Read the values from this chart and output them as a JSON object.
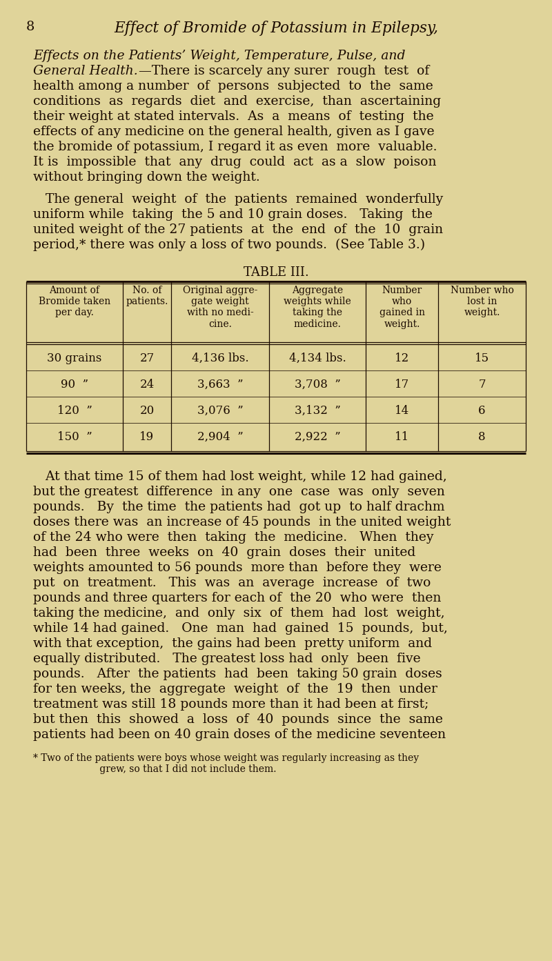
{
  "page_number": "8",
  "header_title": "Effect of Bromide of Potassium in Epilepsy,",
  "bg_color": "#e0d49a",
  "text_color": "#1a0a00",
  "para1_line1_italic": "Effects on the Patients’ Weight, Temperature, Pulse, and",
  "para1_line2_italic": "General Health.",
  "para1_line2_dash": "—There is scarcely any surer  rough  test  of",
  "para1_body": [
    "health among a number  of  persons  subjected  to  the  same",
    "conditions  as  regards  diet  and  exercise,  than  ascertaining",
    "their weight at stated intervals.  As  a  means  of  testing  the",
    "effects of any medicine on the general health, given as I gave",
    "the bromide of potassium, I regard it as even  more  valuable.",
    "It is  impossible  that  any  drug  could  act  as a  slow  poison",
    "without bringing down the weight."
  ],
  "para2": [
    "   The general  weight  of  the  patients  remained  wonderfully",
    "uniform while  taking  the 5 and 10 grain doses.   Taking  the",
    "united weight of the 27 patients  at  the  end  of  the  10  grain",
    "period,* there was only a loss of two pounds.  (See Table 3.)"
  ],
  "table_title": "TABLE III.",
  "table_headers": [
    "Amount of\nBromide taken\nper day.",
    "No. of\npatients.",
    "Original aggre-\ngate weight\nwith no medi-\ncine.",
    "Aggregate\nweights while\ntaking the\nmedicine.",
    "Number\nwho\ngained in\nweight.",
    "Number who\nlost in\nweight."
  ],
  "table_rows": [
    [
      "30 grains",
      "27",
      "4,136 lbs.",
      "4,134 lbs.",
      "12",
      "15"
    ],
    [
      "90  ”",
      "24",
      "3,663  ”",
      "3,708  ”",
      "17",
      "7"
    ],
    [
      "120  ”",
      "20",
      "3,076  ”",
      "3,132  ”",
      "14",
      "6"
    ],
    [
      "150  ”",
      "19",
      "2,904  ”",
      "2,922  ”",
      "11",
      "8"
    ]
  ],
  "para3": [
    "   At that time 15 of them had lost weight, while 12 had gained,",
    "but the greatest  difference  in any  one  case  was  only  seven",
    "pounds.   By  the time  the patients had  got up  to half drachm",
    "doses there was  an increase of 45 pounds  in the united weight",
    "of the 24 who were  then  taking  the  medicine.   When  they",
    "had  been  three  weeks  on  40  grain  doses  their  united",
    "weights amounted to 56 pounds  more than  before they  were",
    "put  on  treatment.   This  was  an  average  increase  of  two",
    "pounds and three quarters for each of  the 20  who were  then",
    "taking the medicine,  and  only  six  of  them  had  lost  weight,",
    "while 14 had gained.   One  man  had  gained  15  pounds,  but,",
    "with that exception,  the gains had been  pretty uniform  and",
    "equally distributed.   The greatest loss had  only  been  five",
    "pounds.   After  the patients  had  been  taking 50 grain  doses",
    "for ten weeks, the  aggregate  weight  of  the  19  then  under",
    "treatment was still 18 pounds more than it had been at first;",
    "but then  this  showed  a  loss  of  40  pounds  since  the  same",
    "patients had been on 40 grain doses of the medicine seventeen"
  ],
  "footnote_line1": "* Two of the patients were boys whose weight was regularly increasing as they",
  "footnote_line2": "                      grew, so that I did not include them."
}
